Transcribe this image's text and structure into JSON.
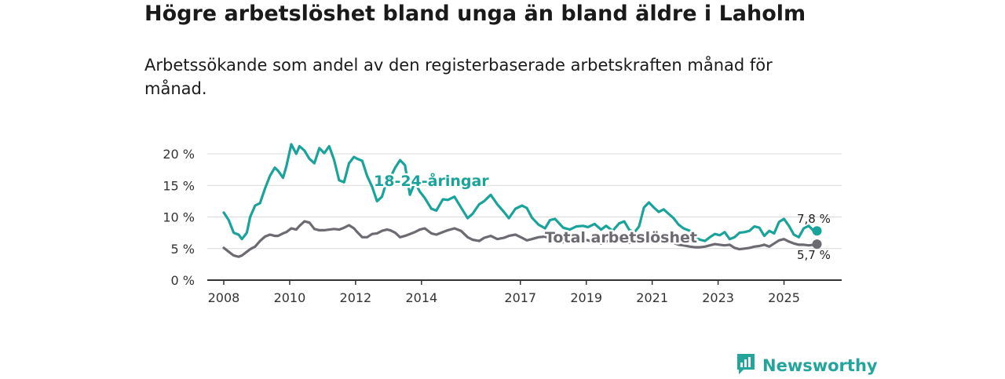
{
  "title": "Högre arbetslöshet bland unga än bland äldre i Laholm",
  "subtitle": "Arbetssökande som andel av den registerbaserade arbetskraften månad för månad.",
  "brand": {
    "name": "Newsworthy",
    "icon": "newsworthy-logo-icon"
  },
  "colors": {
    "youth": "#1aa39a",
    "total": "#6e6a72",
    "axis": "#333333",
    "grid": "#d9d9d9",
    "brand": "#23a59b"
  },
  "chart_data": {
    "type": "line",
    "title": "Högre arbetslöshet bland unga än bland äldre i Laholm",
    "xlabel": "",
    "ylabel": "",
    "xlim": [
      2007.5,
      2026.75
    ],
    "ylim": [
      0,
      20
    ],
    "y_ticks": [
      0,
      5,
      10,
      15,
      20
    ],
    "y_tick_labels": [
      "0 %",
      "5 %",
      "10 %",
      "15 %",
      "20 %"
    ],
    "x_ticks": [
      2008,
      2010,
      2012,
      2014,
      2017,
      2019,
      2021,
      2023,
      2025
    ],
    "x_tick_labels": [
      "2008",
      "2010",
      "2012",
      "2014",
      "2017",
      "2019",
      "2021",
      "2023",
      "2025"
    ],
    "grid": true,
    "series": [
      {
        "name": "18-24-åringar",
        "end_label": "7,8 %",
        "x": [
          2008.0,
          2008.15,
          2008.3,
          2008.45,
          2008.55,
          2008.7,
          2008.8,
          2008.95,
          2009.1,
          2009.25,
          2009.4,
          2009.55,
          2009.65,
          2009.8,
          2009.9,
          2010.05,
          2010.2,
          2010.3,
          2010.45,
          2010.6,
          2010.75,
          2010.9,
          2011.05,
          2011.2,
          2011.35,
          2011.5,
          2011.65,
          2011.8,
          2011.95,
          2012.05,
          2012.2,
          2012.35,
          2012.5,
          2012.65,
          2012.8,
          2012.95,
          2013.05,
          2013.2,
          2013.35,
          2013.5,
          2013.65,
          2013.8,
          2013.95,
          2014.1,
          2014.3,
          2014.45,
          2014.65,
          2014.8,
          2015.0,
          2015.2,
          2015.4,
          2015.55,
          2015.75,
          2015.9,
          2016.1,
          2016.3,
          2016.5,
          2016.65,
          2016.85,
          2017.05,
          2017.2,
          2017.35,
          2017.55,
          2017.75,
          2017.9,
          2018.05,
          2018.3,
          2018.5,
          2018.7,
          2018.9,
          2019.05,
          2019.25,
          2019.45,
          2019.6,
          2019.8,
          2020.0,
          2020.15,
          2020.3,
          2020.45,
          2020.6,
          2020.75,
          2020.9,
          2021.05,
          2021.2,
          2021.35,
          2021.5,
          2021.65,
          2021.8,
          2021.95,
          2022.15,
          2022.3,
          2022.45,
          2022.6,
          2022.75,
          2022.9,
          2023.05,
          2023.2,
          2023.35,
          2023.5,
          2023.65,
          2023.8,
          2023.95,
          2024.1,
          2024.25,
          2024.4,
          2024.55,
          2024.7,
          2024.85,
          2025.0,
          2025.15,
          2025.3,
          2025.45,
          2025.6,
          2025.75,
          2025.9,
          2026.0
        ],
        "values": [
          10.7,
          9.5,
          7.5,
          7.2,
          6.5,
          7.5,
          10.0,
          11.8,
          12.2,
          14.5,
          16.5,
          17.8,
          17.3,
          16.2,
          18.0,
          21.5,
          20.0,
          21.2,
          20.5,
          19.2,
          18.5,
          20.9,
          20.1,
          21.2,
          19.0,
          15.8,
          15.5,
          18.5,
          19.5,
          19.2,
          18.9,
          16.5,
          14.8,
          12.5,
          13.2,
          15.8,
          16.2,
          17.8,
          19.0,
          18.2,
          13.5,
          15.5,
          14.0,
          13.0,
          11.3,
          11.0,
          12.8,
          12.7,
          13.2,
          11.5,
          9.8,
          10.5,
          12.0,
          12.5,
          13.5,
          12.0,
          10.8,
          9.8,
          11.3,
          11.8,
          11.4,
          9.9,
          8.8,
          8.2,
          9.5,
          9.7,
          8.3,
          8.0,
          8.5,
          8.6,
          8.4,
          8.9,
          8.0,
          8.6,
          7.8,
          9.0,
          9.3,
          8.0,
          7.5,
          8.5,
          11.5,
          12.3,
          11.5,
          10.8,
          11.2,
          10.5,
          9.8,
          8.8,
          8.2,
          7.8,
          6.8,
          6.4,
          6.2,
          6.8,
          7.3,
          7.1,
          7.6,
          6.5,
          6.8,
          7.5,
          7.6,
          7.8,
          8.5,
          8.3,
          7.0,
          7.8,
          7.4,
          9.2,
          9.7,
          8.6,
          7.2,
          6.8,
          8.2,
          8.6,
          7.8,
          7.8
        ],
        "color": "#1aa39a"
      },
      {
        "name": "Total arbetslöshet",
        "end_label": "5,7 %",
        "x": [
          2008.0,
          2008.15,
          2008.3,
          2008.45,
          2008.55,
          2008.7,
          2008.8,
          2008.95,
          2009.1,
          2009.25,
          2009.4,
          2009.55,
          2009.65,
          2009.8,
          2009.9,
          2010.05,
          2010.2,
          2010.3,
          2010.45,
          2010.6,
          2010.75,
          2010.9,
          2011.05,
          2011.2,
          2011.35,
          2011.5,
          2011.65,
          2011.8,
          2011.95,
          2012.05,
          2012.2,
          2012.35,
          2012.5,
          2012.65,
          2012.8,
          2012.95,
          2013.05,
          2013.2,
          2013.35,
          2013.5,
          2013.65,
          2013.8,
          2013.95,
          2014.1,
          2014.3,
          2014.45,
          2014.65,
          2014.8,
          2015.0,
          2015.2,
          2015.4,
          2015.55,
          2015.75,
          2015.9,
          2016.1,
          2016.3,
          2016.5,
          2016.65,
          2016.85,
          2017.05,
          2017.2,
          2017.35,
          2017.55,
          2017.75,
          2017.9,
          2018.05,
          2018.3,
          2018.5,
          2018.7,
          2018.9,
          2019.05,
          2019.25,
          2019.45,
          2019.6,
          2019.8,
          2020.0,
          2020.15,
          2020.3,
          2020.45,
          2020.6,
          2020.75,
          2020.9,
          2021.05,
          2021.2,
          2021.35,
          2021.5,
          2021.65,
          2021.8,
          2021.95,
          2022.15,
          2022.3,
          2022.45,
          2022.6,
          2022.75,
          2022.9,
          2023.05,
          2023.2,
          2023.35,
          2023.5,
          2023.65,
          2023.8,
          2023.95,
          2024.1,
          2024.25,
          2024.4,
          2024.55,
          2024.7,
          2024.85,
          2025.0,
          2025.15,
          2025.3,
          2025.45,
          2025.6,
          2025.75,
          2025.9,
          2026.0
        ],
        "values": [
          5.1,
          4.5,
          3.9,
          3.7,
          3.9,
          4.5,
          4.9,
          5.3,
          6.2,
          6.9,
          7.2,
          7.0,
          7.0,
          7.4,
          7.6,
          8.2,
          8.0,
          8.6,
          9.3,
          9.1,
          8.1,
          7.9,
          7.9,
          8.0,
          8.1,
          8.0,
          8.3,
          8.7,
          8.2,
          7.6,
          6.8,
          6.8,
          7.3,
          7.4,
          7.8,
          8.0,
          7.9,
          7.5,
          6.8,
          7.0,
          7.3,
          7.6,
          8.0,
          8.2,
          7.4,
          7.2,
          7.6,
          7.9,
          8.2,
          7.8,
          6.8,
          6.4,
          6.2,
          6.7,
          7.0,
          6.5,
          6.7,
          7.0,
          7.2,
          6.7,
          6.3,
          6.5,
          6.8,
          6.9,
          6.5,
          6.1,
          6.0,
          6.4,
          6.7,
          6.5,
          6.3,
          6.0,
          5.8,
          6.1,
          6.4,
          6.6,
          6.2,
          5.9,
          6.3,
          6.8,
          7.2,
          7.1,
          6.6,
          6.1,
          6.0,
          6.0,
          5.9,
          5.6,
          5.5,
          5.3,
          5.2,
          5.2,
          5.3,
          5.5,
          5.7,
          5.6,
          5.5,
          5.6,
          5.1,
          4.9,
          5.0,
          5.1,
          5.3,
          5.4,
          5.6,
          5.3,
          5.8,
          6.3,
          6.5,
          6.1,
          5.8,
          5.6,
          5.6,
          5.5,
          5.6,
          5.7
        ],
        "color": "#6e6a72"
      }
    ]
  }
}
